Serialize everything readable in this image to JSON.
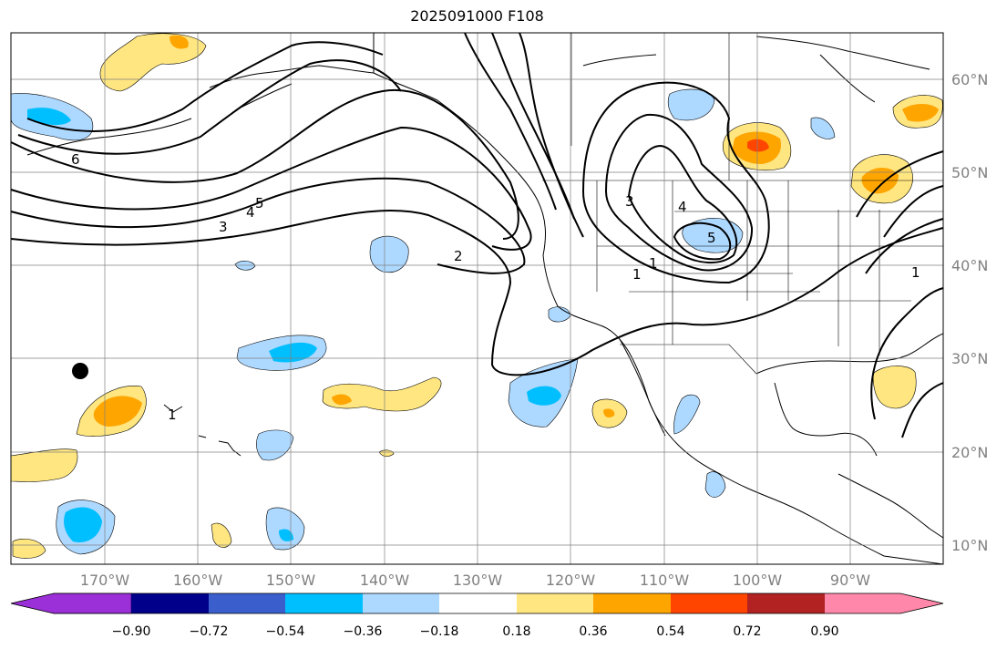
{
  "title": "2025091000 F108",
  "map": {
    "lon_labels": [
      "170°W",
      "160°W",
      "150°W",
      "140°W",
      "130°W",
      "120°W",
      "110°W",
      "100°W",
      "90°W"
    ],
    "lat_labels": [
      "60°N",
      "50°N",
      "40°N",
      "30°N",
      "20°N",
      "10°N"
    ],
    "contour_labels": [
      "6",
      "5",
      "4",
      "3",
      "2",
      "1",
      "1",
      "1",
      "3",
      "4",
      "5",
      "1"
    ],
    "colors": {
      "land_outline": "#000000",
      "grid": "#808080",
      "contour": "#000000"
    }
  },
  "colorbar": {
    "ticks": [
      "−0.90",
      "−0.72",
      "−0.54",
      "−0.36",
      "−0.18",
      "0.18",
      "0.36",
      "0.54",
      "0.72",
      "0.90"
    ],
    "colors": [
      "#9b30d9",
      "#00008b",
      "#3a5fcd",
      "#00bfff",
      "#add8ff",
      "#ffffff",
      "#ffe680",
      "#ffa500",
      "#ff4500",
      "#b22222",
      "#ff88aa"
    ]
  }
}
